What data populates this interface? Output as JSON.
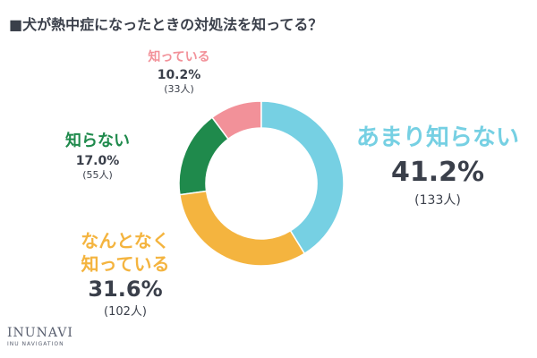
{
  "chart_data": {
    "type": "pie",
    "title": "■犬が熱中症になったときの対処法を知ってる？",
    "slices": [
      {
        "label": "知っている",
        "percent_text": "10.2%",
        "count_text": "(33人)",
        "value": 10.2,
        "count": 33,
        "color": "#f29199"
      },
      {
        "label": "知らない",
        "percent_text": "17.0%",
        "count_text": "(55人)",
        "value": 17.0,
        "count": 55,
        "color": "#1f8a4c"
      },
      {
        "label": "なんとなく\n知っている",
        "percent_text": "31.6%",
        "count_text": "(102人)",
        "value": 31.6,
        "count": 102,
        "color": "#f4b43f"
      },
      {
        "label": "あまり知らない",
        "percent_text": "41.2%",
        "count_text": "(133人)",
        "value": 41.2,
        "count": 133,
        "color": "#76d0e3"
      }
    ]
  },
  "colors": {
    "title": "#3a3f4a",
    "text": "#3a3f4a"
  },
  "logo": {
    "main": "INUNAVI",
    "sub": "INU NAVIGATION"
  }
}
